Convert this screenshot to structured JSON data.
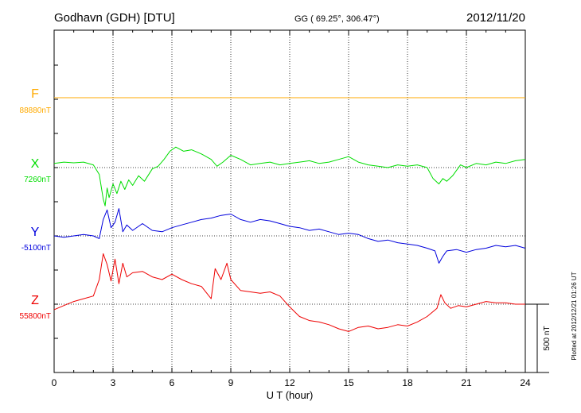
{
  "header": {
    "station": "Godhavn (GDH)  [DTU]",
    "coords": "GG ( 69.25°, 306.47°)",
    "date": "2012/11/20"
  },
  "plotted_note": "Plotted at 2012/12/21 01:26 UT",
  "scale_label": "500 nT",
  "chart_data": {
    "type": "line",
    "xlabel": "U T (hour)",
    "xlim": [
      0,
      24
    ],
    "x_ticks": [
      "0",
      "3",
      "6",
      "9",
      "12",
      "15",
      "18",
      "21",
      "24"
    ],
    "scale_bar_nT": 500,
    "series": [
      {
        "name": "F",
        "baseline_label": "88880nT",
        "baseline_nT": 88880,
        "color": "#ffaa00",
        "x": [
          0,
          24
        ],
        "y_offset_nT": [
          0,
          0
        ]
      },
      {
        "name": "X",
        "baseline_label": "7260nT",
        "baseline_nT": 7260,
        "color": "#00dd00",
        "x": [
          0,
          0.5,
          1,
          1.5,
          2,
          2.3,
          2.5,
          2.6,
          2.7,
          2.8,
          3,
          3.2,
          3.4,
          3.6,
          3.8,
          4,
          4.3,
          4.6,
          5,
          5.3,
          5.6,
          5.9,
          6.2,
          6.6,
          7,
          7.5,
          8,
          8.3,
          8.6,
          9,
          9.5,
          10,
          10.5,
          11,
          11.5,
          12,
          12.5,
          13,
          13.5,
          14,
          14.5,
          15,
          15.5,
          16,
          16.5,
          17,
          17.5,
          18,
          18.5,
          19,
          19.3,
          19.6,
          19.8,
          20,
          20.3,
          20.7,
          21,
          21.5,
          22,
          22.5,
          23,
          23.5,
          24
        ],
        "y_offset_nT": [
          30,
          40,
          35,
          40,
          20,
          -50,
          -230,
          -280,
          -150,
          -220,
          -120,
          -190,
          -100,
          -160,
          -90,
          -130,
          -60,
          -100,
          -10,
          10,
          60,
          120,
          150,
          120,
          130,
          100,
          60,
          10,
          40,
          90,
          60,
          20,
          30,
          40,
          20,
          30,
          40,
          50,
          30,
          40,
          60,
          80,
          40,
          20,
          10,
          0,
          20,
          10,
          20,
          0,
          -80,
          -120,
          -80,
          -100,
          -60,
          20,
          0,
          30,
          20,
          40,
          30,
          50,
          60
        ]
      },
      {
        "name": "Y",
        "baseline_label": "-5100nT",
        "baseline_nT": -5100,
        "color": "#0000dd",
        "x": [
          0,
          0.5,
          1,
          1.5,
          2,
          2.3,
          2.5,
          2.7,
          2.9,
          3.1,
          3.3,
          3.5,
          3.7,
          4,
          4.5,
          5,
          5.5,
          6,
          6.5,
          7,
          7.5,
          8,
          8.5,
          9,
          9.5,
          10,
          10.5,
          11,
          11.5,
          12,
          12.5,
          13,
          13.5,
          14,
          14.5,
          15,
          15.5,
          16,
          16.5,
          17,
          17.5,
          18,
          18.5,
          19,
          19.4,
          19.6,
          19.8,
          20,
          20.5,
          21,
          21.5,
          22,
          22.5,
          23,
          23.5,
          24
        ],
        "y_offset_nT": [
          0,
          -10,
          0,
          10,
          0,
          -20,
          120,
          190,
          60,
          100,
          200,
          30,
          80,
          40,
          90,
          40,
          30,
          60,
          80,
          100,
          120,
          130,
          150,
          160,
          120,
          100,
          120,
          110,
          90,
          70,
          60,
          40,
          50,
          30,
          10,
          20,
          10,
          -20,
          -40,
          -30,
          -50,
          -60,
          -70,
          -90,
          -110,
          -200,
          -150,
          -110,
          -100,
          -120,
          -100,
          -90,
          -70,
          -80,
          -70,
          -90
        ]
      },
      {
        "name": "Z",
        "baseline_label": "55800nT",
        "baseline_nT": 55800,
        "color": "#ee0000",
        "x": [
          0,
          0.5,
          1,
          1.5,
          2,
          2.3,
          2.5,
          2.7,
          2.9,
          3.1,
          3.3,
          3.5,
          3.7,
          4,
          4.5,
          5,
          5.5,
          6,
          6.5,
          7,
          7.5,
          8,
          8.2,
          8.5,
          8.8,
          9,
          9.5,
          10,
          10.5,
          11,
          11.5,
          12,
          12.5,
          13,
          13.5,
          14,
          14.5,
          15,
          15.5,
          16,
          16.5,
          17,
          17.5,
          18,
          18.5,
          19,
          19.5,
          19.7,
          19.9,
          20.2,
          20.6,
          21,
          21.5,
          22,
          22.5,
          23,
          23.5,
          24
        ],
        "y_offset_nT": [
          -40,
          -10,
          20,
          40,
          60,
          180,
          370,
          290,
          170,
          330,
          150,
          300,
          200,
          230,
          240,
          200,
          180,
          220,
          180,
          150,
          130,
          40,
          260,
          180,
          300,
          180,
          100,
          90,
          80,
          90,
          60,
          -20,
          -90,
          -120,
          -130,
          -150,
          -180,
          -200,
          -170,
          -160,
          -180,
          -170,
          -150,
          -160,
          -130,
          -90,
          -30,
          70,
          10,
          -30,
          -10,
          -20,
          0,
          20,
          10,
          10,
          0,
          0
        ]
      }
    ]
  }
}
